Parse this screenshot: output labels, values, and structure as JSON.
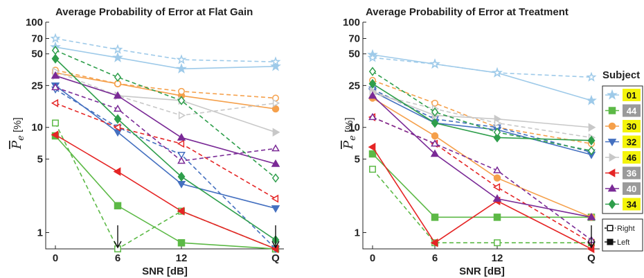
{
  "chart_data": [
    {
      "type": "line",
      "title": "Average Probability of Error at Flat Gain",
      "xlabel": "SNR [dB]",
      "ylabel": "P_e [%]",
      "yscale": "log",
      "ylim": [
        0.7,
        100
      ],
      "categories": [
        "0",
        "6",
        "12",
        "Q"
      ],
      "yticks": [
        1,
        5,
        10,
        25,
        50,
        70,
        100
      ],
      "arrow_positions": [
        "6",
        "Q"
      ],
      "series": [
        {
          "name": "01",
          "hand": "Left",
          "values": [
            58,
            46,
            36,
            38
          ]
        },
        {
          "name": "01",
          "hand": "Right",
          "values": [
            70,
            55,
            44,
            42
          ]
        },
        {
          "name": "44",
          "hand": "Left",
          "values": [
            8.3,
            1.8,
            0.8,
            0.7
          ]
        },
        {
          "name": "44",
          "hand": "Right",
          "values": [
            11,
            0.7,
            1.6,
            0.7
          ]
        },
        {
          "name": "30",
          "hand": "Left",
          "values": [
            33,
            26,
            20,
            15
          ]
        },
        {
          "name": "30",
          "hand": "Right",
          "values": [
            35,
            26,
            22,
            19
          ]
        },
        {
          "name": "32",
          "hand": "Left",
          "values": [
            25,
            9,
            2.9,
            1.7
          ]
        },
        {
          "name": "32",
          "hand": "Right",
          "values": [
            23,
            10,
            5.5,
            0.7
          ]
        },
        {
          "name": "46",
          "hand": "Left",
          "values": [
            31,
            20,
            18,
            9
          ]
        },
        {
          "name": "46",
          "hand": "Right",
          "values": [
            34,
            20,
            13,
            17
          ]
        },
        {
          "name": "36",
          "hand": "Left",
          "values": [
            8.5,
            3.8,
            1.6,
            0.7
          ]
        },
        {
          "name": "36",
          "hand": "Right",
          "values": [
            17,
            10,
            7,
            2.1
          ]
        },
        {
          "name": "40",
          "hand": "Left",
          "values": [
            31,
            20,
            8,
            4.5
          ]
        },
        {
          "name": "40",
          "hand": "Right",
          "values": [
            24,
            15,
            4.8,
            6.3
          ]
        },
        {
          "name": "34",
          "hand": "Left",
          "values": [
            45,
            12,
            3.4,
            0.85
          ]
        },
        {
          "name": "34",
          "hand": "Right",
          "values": [
            54,
            30,
            18,
            3.3
          ]
        }
      ]
    },
    {
      "type": "line",
      "title": "Average Probability of Error at Treatment",
      "xlabel": "SNR [dB]",
      "ylabel": "P_e [%]",
      "yscale": "log",
      "ylim": [
        0.7,
        100
      ],
      "categories": [
        "0",
        "6",
        "12",
        "Q"
      ],
      "yticks": [
        1,
        5,
        10,
        25,
        50,
        70,
        100
      ],
      "arrow_positions": [
        "Q"
      ],
      "series": [
        {
          "name": "01",
          "hand": "Left",
          "values": [
            49,
            40,
            33,
            18
          ]
        },
        {
          "name": "01",
          "hand": "Right",
          "values": [
            46,
            40,
            33,
            30
          ]
        },
        {
          "name": "44",
          "hand": "Left",
          "values": [
            5.6,
            1.4,
            1.4,
            1.4
          ]
        },
        {
          "name": "44",
          "hand": "Right",
          "values": [
            4,
            0.8,
            0.8,
            0.8
          ]
        },
        {
          "name": "30",
          "hand": "Left",
          "values": [
            19,
            8.3,
            3.3,
            1.4
          ]
        },
        {
          "name": "30",
          "hand": "Right",
          "values": [
            28,
            17,
            10,
            7
          ]
        },
        {
          "name": "32",
          "hand": "Left",
          "values": [
            22,
            11,
            9.5,
            5.5
          ]
        },
        {
          "name": "32",
          "hand": "Right",
          "values": [
            23,
            12,
            10,
            5.8
          ]
        },
        {
          "name": "46",
          "hand": "Left",
          "values": [
            22,
            13,
            12,
            10
          ]
        },
        {
          "name": "46",
          "hand": "Right",
          "values": [
            21,
            15,
            11,
            8
          ]
        },
        {
          "name": "36",
          "hand": "Left",
          "values": [
            6.5,
            0.8,
            2,
            0.7
          ]
        },
        {
          "name": "36",
          "hand": "Right",
          "values": [
            12.5,
            7,
            2.7,
            0.8
          ]
        },
        {
          "name": "40",
          "hand": "Left",
          "values": [
            20,
            5.6,
            2.1,
            1.4
          ]
        },
        {
          "name": "40",
          "hand": "Right",
          "values": [
            12.5,
            7,
            3.9,
            0.85
          ]
        },
        {
          "name": "34",
          "hand": "Left",
          "values": [
            26,
            11,
            8,
            7.5
          ]
        },
        {
          "name": "34",
          "hand": "Right",
          "values": [
            34,
            14,
            9,
            6
          ]
        }
      ]
    }
  ],
  "legend": {
    "title": "Subject",
    "entries": [
      {
        "id": "01",
        "color": "#9ecae9",
        "marker": "star",
        "highlight": "#f4f40a"
      },
      {
        "id": "44",
        "color": "#5cb946",
        "marker": "square",
        "highlight": "#9a9a9a"
      },
      {
        "id": "30",
        "color": "#f5a04b",
        "marker": "circle",
        "highlight": "#f4f40a"
      },
      {
        "id": "32",
        "color": "#4470c0",
        "marker": "triangle-down",
        "highlight": "#f4f40a"
      },
      {
        "id": "46",
        "color": "#c8c8c8",
        "marker": "triangle-right",
        "highlight": "#f4f40a"
      },
      {
        "id": "36",
        "color": "#e52525",
        "marker": "triangle-left",
        "highlight": "#9a9a9a"
      },
      {
        "id": "40",
        "color": "#7a2a96",
        "marker": "triangle-up",
        "highlight": "#9a9a9a"
      },
      {
        "id": "34",
        "color": "#2e9e4b",
        "marker": "diamond",
        "highlight": "#f4f40a"
      }
    ],
    "hands": [
      {
        "label": "Right",
        "style": "dashed-open"
      },
      {
        "label": "Left",
        "style": "solid-filled"
      }
    ]
  }
}
